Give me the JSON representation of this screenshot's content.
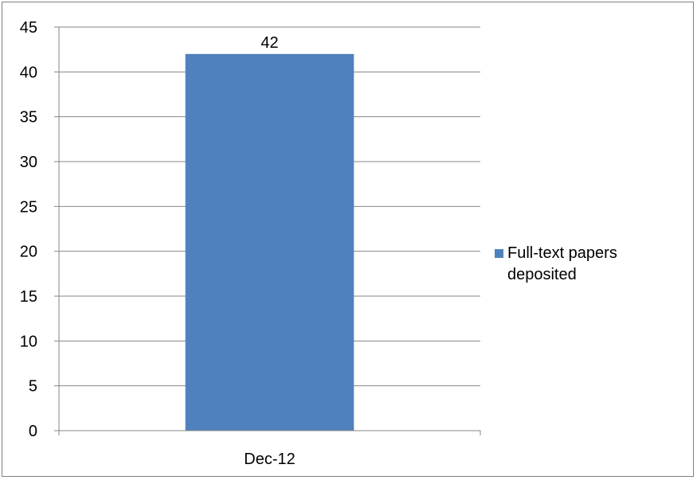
{
  "chart_data": {
    "type": "bar",
    "categories": [
      "Dec-12"
    ],
    "series": [
      {
        "name": "Full-text papers deposited",
        "values": [
          42
        ],
        "color": "#4f81bd"
      }
    ],
    "data_labels": [
      "42"
    ],
    "ylim": [
      0,
      45
    ],
    "yticks": [
      0,
      5,
      10,
      15,
      20,
      25,
      30,
      35,
      40,
      45
    ],
    "grid": true,
    "legend_position": "right",
    "legend_lines": [
      "Full-text papers",
      "deposited"
    ]
  }
}
